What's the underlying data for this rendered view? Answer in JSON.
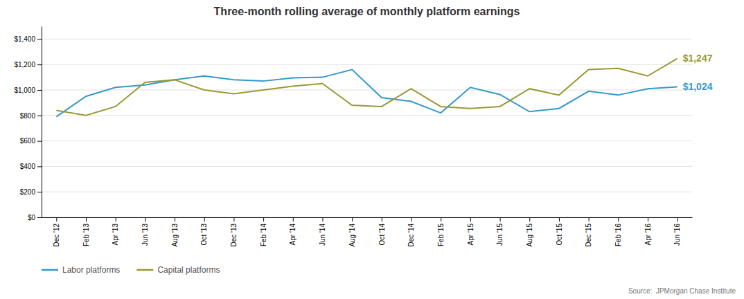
{
  "chart_data": {
    "type": "line",
    "title": "Three-month rolling average of monthly platform earnings",
    "categories": [
      "Dec '12",
      "Feb '13",
      "Apr '13",
      "Jun '13",
      "Aug '13",
      "Oct '13",
      "Dec '13",
      "Feb '14",
      "Apr '14",
      "Jun '14",
      "Aug '14",
      "Oct '14",
      "Dec '14",
      "Feb '15",
      "Apr '15",
      "Jun '15",
      "Aug '15",
      "Oct '15",
      "Dec '15",
      "Feb '16",
      "Apr '16",
      "Jun '16"
    ],
    "series": [
      {
        "name": "Labor platforms",
        "color": "#3399CC",
        "values": [
          790,
          950,
          1020,
          1040,
          1080,
          1110,
          1080,
          1070,
          1095,
          1100,
          1160,
          940,
          910,
          820,
          1020,
          965,
          830,
          855,
          990,
          960,
          1010,
          1024
        ]
      },
      {
        "name": "Capital platforms",
        "color": "#999933",
        "values": [
          840,
          800,
          870,
          1060,
          1080,
          1000,
          970,
          1000,
          1030,
          1050,
          880,
          870,
          1010,
          870,
          855,
          870,
          1010,
          960,
          1160,
          1170,
          1110,
          1247
        ]
      }
    ],
    "annotations": [
      {
        "text": "$1,247",
        "x": "Jun '16",
        "y": 1247,
        "series": "Capital platforms"
      },
      {
        "text": "$1,024",
        "x": "Jun '16",
        "y": 1024,
        "series": "Labor platforms"
      }
    ],
    "ylim": [
      0,
      1500
    ],
    "yticks": [
      {
        "value": 0,
        "label": "$0"
      },
      {
        "value": 200,
        "label": "$200"
      },
      {
        "value": 400,
        "label": "$400"
      },
      {
        "value": 600,
        "label": "$600"
      },
      {
        "value": 800,
        "label": "$800"
      },
      {
        "value": 1000,
        "label": "$1,000"
      },
      {
        "value": 1200,
        "label": "$1,200"
      },
      {
        "value": 1400,
        "label": "$1,400"
      }
    ],
    "grid": true,
    "legend": "bottom-left",
    "source": "Source:  JPMorgan Chase Institute"
  }
}
